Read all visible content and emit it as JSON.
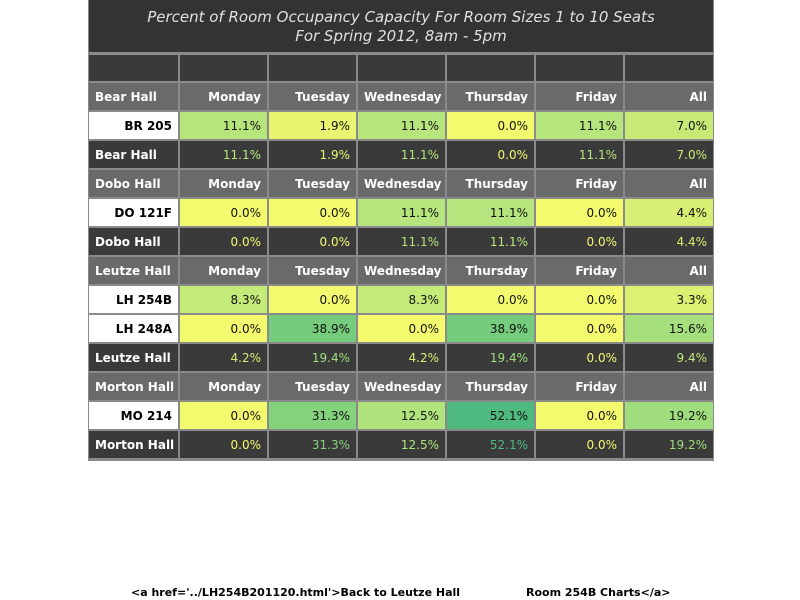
{
  "title": {
    "line1": "Percent of Room Occupancy Capacity For Room Sizes 1 to 10 Seats",
    "line2": "For Spring 2012, 8am - 5pm"
  },
  "days": [
    "Monday",
    "Tuesday",
    "Wednesday",
    "Thursday",
    "Friday",
    "All"
  ],
  "halls": [
    {
      "name": "Bear Hall",
      "rooms": [
        {
          "name": "BR 205",
          "values": [
            "11.1%",
            "1.9%",
            "11.1%",
            "0.0%",
            "11.1%",
            "7.0%"
          ],
          "colors": [
            "#b5e57c",
            "#e8f570",
            "#b5e57c",
            "#f3fa6e",
            "#b5e57c",
            "#c6ea75"
          ]
        }
      ],
      "total": {
        "name": "Bear Hall",
        "values": [
          "11.1%",
          "1.9%",
          "11.1%",
          "0.0%",
          "11.1%",
          "7.0%"
        ],
        "colors": [
          "#b5e57c",
          "#e8f570",
          "#b5e57c",
          "#f3fa6e",
          "#b5e57c",
          "#c6ea75"
        ]
      }
    },
    {
      "name": "Dobo Hall",
      "rooms": [
        {
          "name": "DO 121F",
          "values": [
            "0.0%",
            "0.0%",
            "11.1%",
            "11.1%",
            "0.0%",
            "4.4%"
          ],
          "colors": [
            "#f3fa6e",
            "#f3fa6e",
            "#b5e57c",
            "#b5e57c",
            "#f3fa6e",
            "#d6ef72"
          ]
        }
      ],
      "total": {
        "name": "Dobo Hall",
        "values": [
          "0.0%",
          "0.0%",
          "11.1%",
          "11.1%",
          "0.0%",
          "4.4%"
        ],
        "colors": [
          "#f3fa6e",
          "#f3fa6e",
          "#b5e57c",
          "#b5e57c",
          "#f3fa6e",
          "#d6ef72"
        ]
      }
    },
    {
      "name": "Leutze Hall",
      "rooms": [
        {
          "name": "LH 254B",
          "values": [
            "8.3%",
            "0.0%",
            "8.3%",
            "0.0%",
            "0.0%",
            "3.3%"
          ],
          "colors": [
            "#c4ea78",
            "#f3fa6e",
            "#c4ea78",
            "#f3fa6e",
            "#f3fa6e",
            "#dcf172"
          ]
        },
        {
          "name": "LH 248A",
          "values": [
            "0.0%",
            "38.9%",
            "0.0%",
            "38.9%",
            "0.0%",
            "15.6%"
          ],
          "colors": [
            "#f3fa6e",
            "#74cc7c",
            "#f3fa6e",
            "#74cc7c",
            "#f3fa6e",
            "#a6e07c"
          ]
        }
      ],
      "total": {
        "name": "Leutze Hall",
        "values": [
          "4.2%",
          "19.4%",
          "4.2%",
          "19.4%",
          "0.0%",
          "9.4%"
        ],
        "colors": [
          "#d6ef72",
          "#a0dd7c",
          "#d6ef72",
          "#a0dd7c",
          "#f3fa6e",
          "#bbe77a"
        ]
      }
    },
    {
      "name": "Morton Hall",
      "rooms": [
        {
          "name": "MO 214",
          "values": [
            "0.0%",
            "31.3%",
            "12.5%",
            "52.1%",
            "0.0%",
            "19.2%"
          ],
          "colors": [
            "#f3fa6e",
            "#84d27c",
            "#b0e37c",
            "#4fba80",
            "#f3fa6e",
            "#a0dd7c"
          ]
        }
      ],
      "total": {
        "name": "Morton Hall",
        "values": [
          "0.0%",
          "31.3%",
          "12.5%",
          "52.1%",
          "0.0%",
          "19.2%"
        ],
        "colors": [
          "#f3fa6e",
          "#84d27c",
          "#b0e37c",
          "#4fba80",
          "#f3fa6e",
          "#a0dd7c"
        ]
      }
    }
  ],
  "footer": {
    "left_text": "<a href='../LH254B201120.html'>Back to Leutze Hall",
    "right_text": "Room 254B Charts</a>"
  }
}
